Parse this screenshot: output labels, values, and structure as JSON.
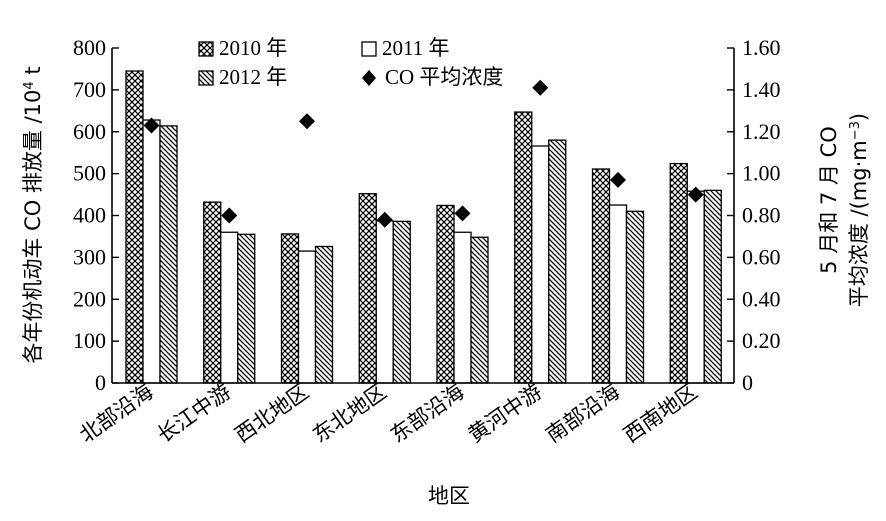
{
  "chart_data": {
    "type": "bar",
    "categories": [
      "北部沿海",
      "长江中游",
      "西北地区",
      "东北地区",
      "东部沿海",
      "黄河中游",
      "南部沿海",
      "西南地区"
    ],
    "series": [
      {
        "name": "2010 年",
        "kind": "bar",
        "pattern": "cross-hatch",
        "values": [
          745,
          432,
          356,
          452,
          424,
          647,
          511,
          524
        ]
      },
      {
        "name": "2011 年",
        "kind": "bar",
        "pattern": "white",
        "values": [
          628,
          360,
          315,
          387,
          360,
          566,
          425,
          458
        ]
      },
      {
        "name": "2012 年",
        "kind": "bar",
        "pattern": "diagonal-hatch",
        "values": [
          614,
          355,
          326,
          386,
          348,
          580,
          410,
          460
        ]
      },
      {
        "name": "CO 平均浓度",
        "kind": "marker",
        "marker": "diamond",
        "axis": "right",
        "values": [
          1.23,
          0.8,
          1.25,
          0.78,
          0.81,
          1.41,
          0.97,
          0.9
        ]
      }
    ],
    "xlabel": "地区",
    "ylabel_left": "各年份机动车 CO 排放量 /10",
    "ylabel_left_sup": "4",
    "ylabel_left_unit": " t",
    "ylabel_right_line1": "5 月和 7 月 CO",
    "ylabel_right_line2": "平均浓度 /(mg·m",
    "ylabel_right_sup": "−3",
    "ylabel_right_close": ")",
    "ylim_left": [
      0,
      800
    ],
    "yticks_left": [
      "0",
      "100",
      "200",
      "300",
      "400",
      "500",
      "600",
      "700",
      "800"
    ],
    "ylim_right": [
      0,
      1.6
    ],
    "yticks_right": [
      "0",
      "0.20",
      "0.40",
      "0.60",
      "0.80",
      "1.00",
      "1.20",
      "1.40",
      "1.60"
    ],
    "legend_position": "top-center",
    "grid": false
  }
}
